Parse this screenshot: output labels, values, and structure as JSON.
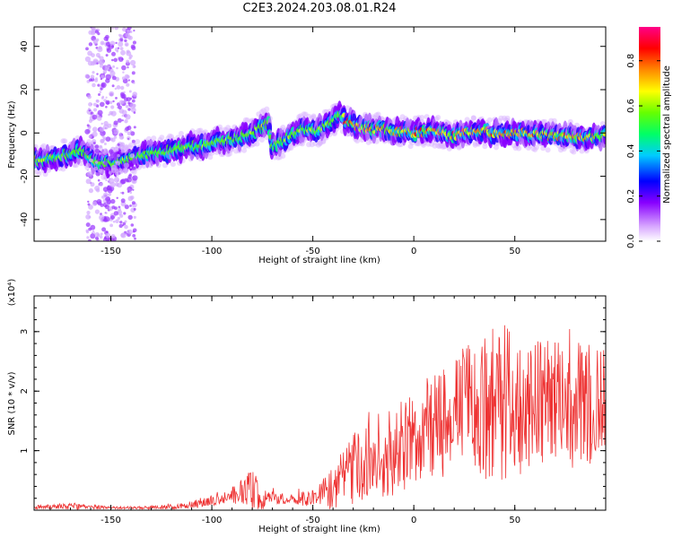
{
  "title": "C2E3.2024.203.08.01.R24",
  "chart_data": [
    {
      "type": "heatmap",
      "title": "C2E3.2024.203.08.01.R24",
      "xlabel": "Height of straight line (km)",
      "ylabel": "Frequency (Hz)",
      "xlim": [
        -188,
        95
      ],
      "ylim": [
        -50,
        49
      ],
      "x_ticks": [
        "-150",
        "-100",
        "-50",
        "0",
        "50"
      ],
      "x_tick_values": [
        -150,
        -100,
        -50,
        0,
        50
      ],
      "y_ticks": [
        "-40",
        "-20",
        "0",
        "20",
        "40"
      ],
      "y_tick_values": [
        -40,
        -20,
        0,
        20,
        40
      ],
      "colorbar": {
        "label": "Normalized spectral amplitude",
        "range": [
          0,
          0.95
        ],
        "ticks": [
          "0.0",
          "0.2",
          "0.4",
          "0.6",
          "0.8"
        ],
        "tick_values": [
          0.0,
          0.2,
          0.4,
          0.6,
          0.8
        ],
        "colors": [
          "#ffffff",
          "#cc88ff",
          "#8800ff",
          "#0000ff",
          "#00ccff",
          "#00ff66",
          "#66ff00",
          "#ffff00",
          "#ff8800",
          "#ff0000",
          "#ff0088"
        ]
      },
      "ridge": {
        "x": [
          -188,
          -175,
          -165,
          -155,
          -145,
          -135,
          -120,
          -110,
          -100,
          -90,
          -80,
          -72,
          -70,
          -62,
          -55,
          -48,
          -42,
          -36,
          -33,
          -28,
          -20,
          -10,
          0,
          10,
          20,
          30,
          40,
          50,
          60,
          70,
          80,
          95
        ],
        "y": [
          -13,
          -11,
          -8,
          -14,
          -13,
          -10,
          -8,
          -6,
          -5,
          -3,
          0,
          5,
          -7,
          -2,
          2,
          1,
          4,
          8,
          5,
          3,
          2,
          1,
          0,
          1,
          -1,
          1,
          0,
          0,
          -1,
          -1,
          -2,
          -2
        ]
      },
      "noise_band_x": [
        -162,
        -138
      ]
    },
    {
      "type": "line",
      "xlabel": "Height of straight line (km)",
      "ylabel": "SNR (10 * v/v)",
      "y_multiplier": "(x10⁴)",
      "xlim": [
        -188,
        95
      ],
      "ylim": [
        0,
        3.6
      ],
      "x_ticks": [
        "-150",
        "-100",
        "-50",
        "0",
        "50"
      ],
      "x_tick_values": [
        -150,
        -100,
        -50,
        0,
        50
      ],
      "y_ticks": [
        "1",
        "2",
        "3"
      ],
      "y_tick_values": [
        1,
        2,
        3
      ],
      "color": "#ee3333",
      "envelope": {
        "x": [
          -188,
          -170,
          -150,
          -130,
          -115,
          -100,
          -90,
          -80,
          -75,
          -70,
          -60,
          -50,
          -40,
          -35,
          -30,
          -20,
          -10,
          0,
          10,
          20,
          30,
          40,
          50,
          60,
          70,
          80,
          95
        ],
        "mean": [
          0.05,
          0.07,
          0.04,
          0.04,
          0.07,
          0.15,
          0.25,
          0.33,
          0.2,
          0.2,
          0.2,
          0.2,
          0.35,
          0.6,
          0.7,
          0.85,
          1.0,
          1.2,
          1.45,
          1.6,
          1.75,
          1.85,
          1.85,
          1.85,
          1.8,
          1.75,
          1.8
        ],
        "amp": [
          0.03,
          0.06,
          0.02,
          0.03,
          0.05,
          0.1,
          0.15,
          0.35,
          0.2,
          0.1,
          0.1,
          0.15,
          0.35,
          0.45,
          0.6,
          0.65,
          0.75,
          0.8,
          0.9,
          1.05,
          1.15,
          1.4,
          1.3,
          1.1,
          1.15,
          1.1,
          1.0
        ]
      }
    }
  ]
}
